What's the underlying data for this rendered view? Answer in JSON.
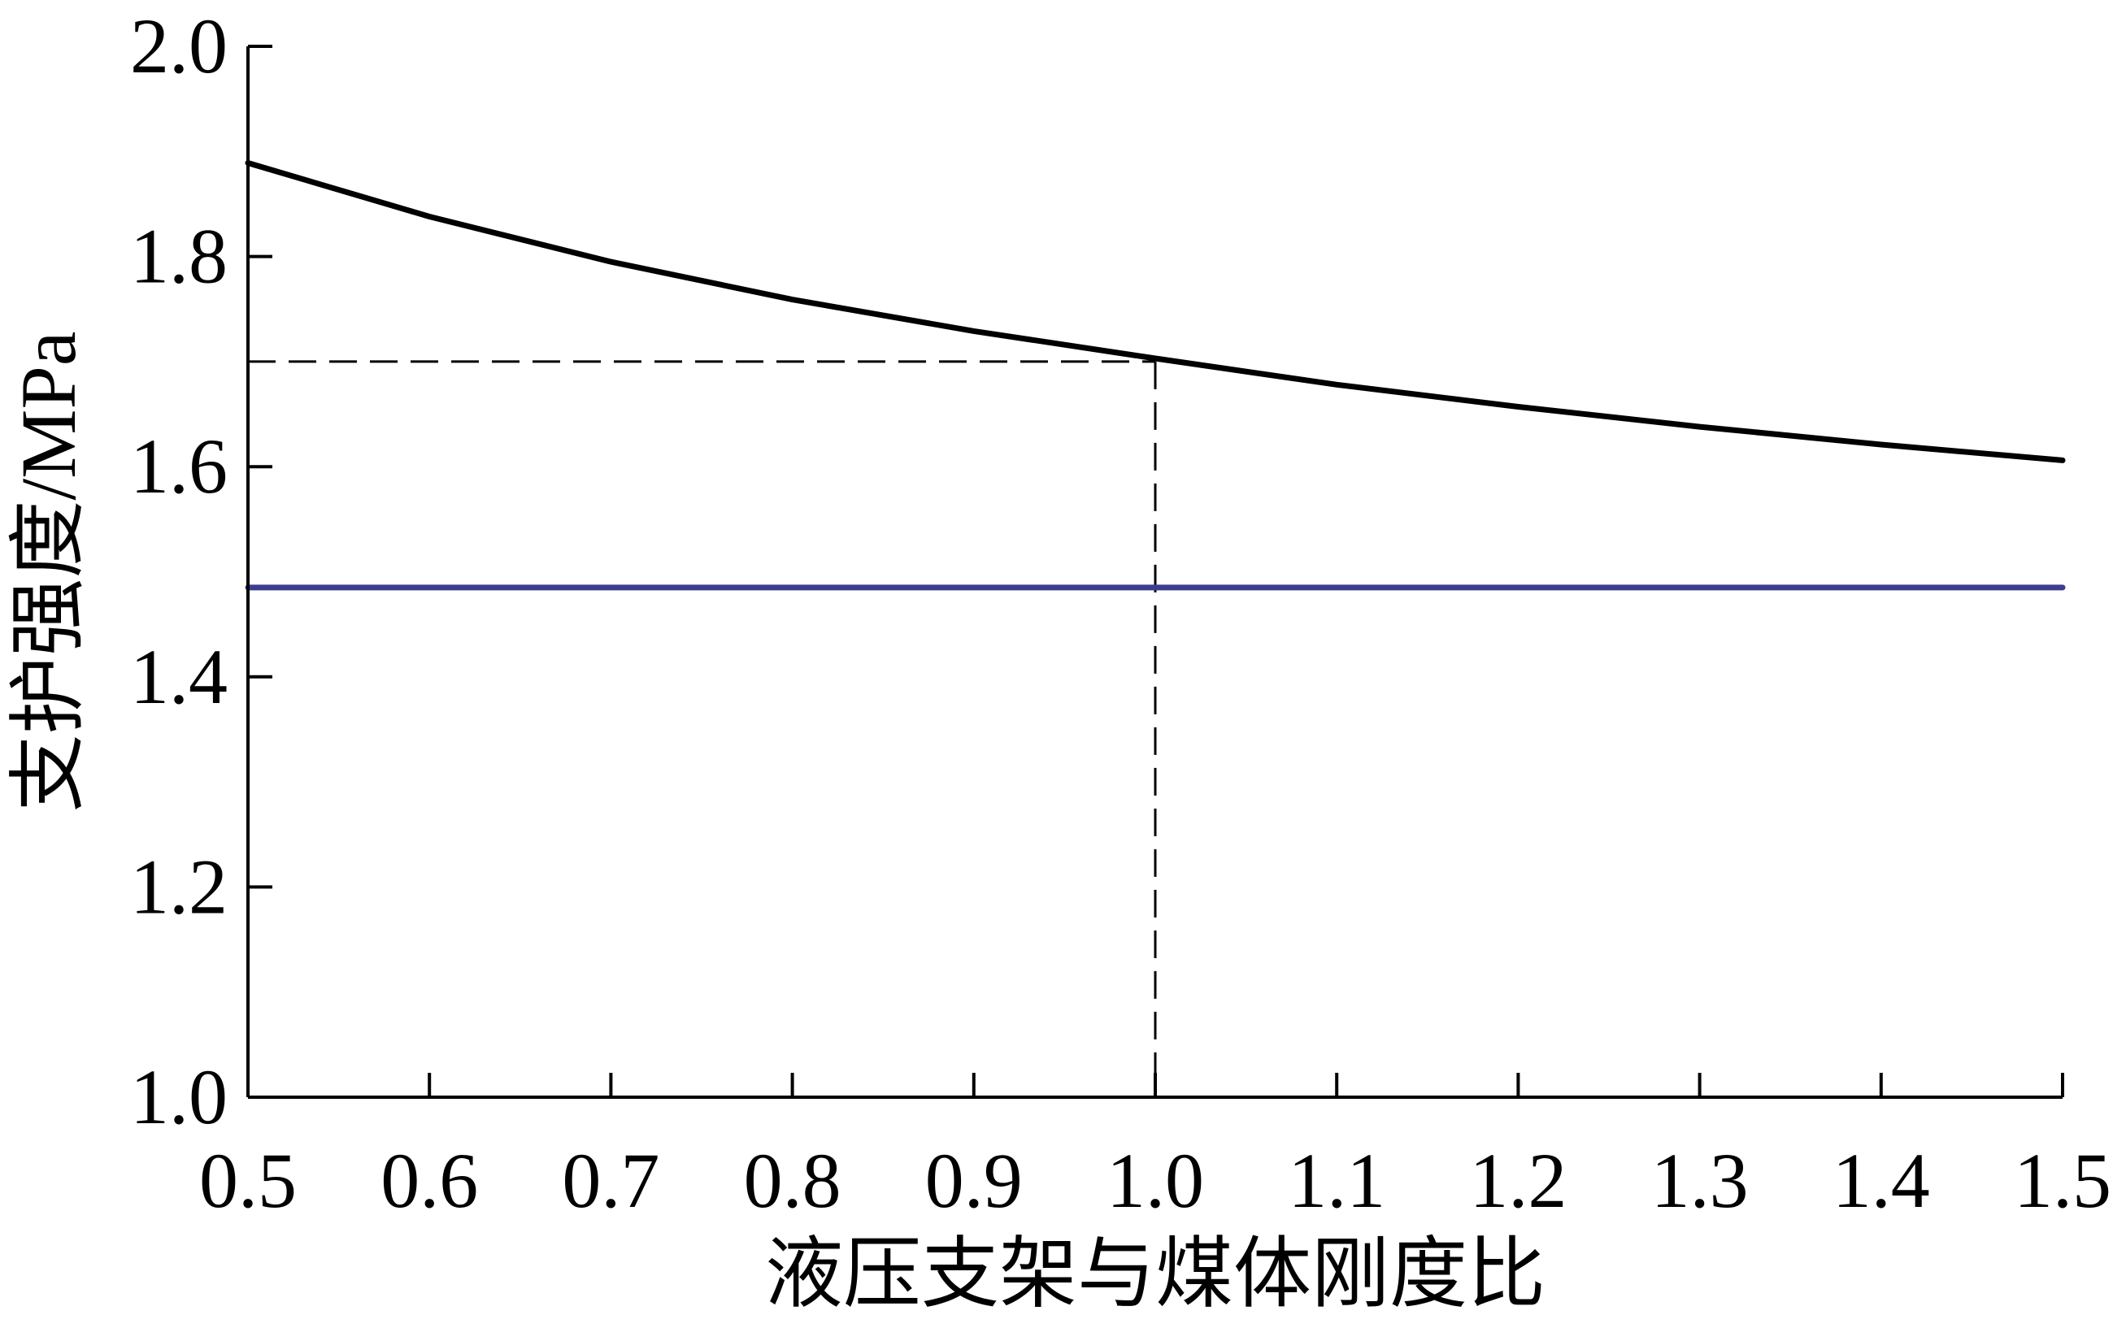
{
  "chart_data": {
    "type": "line",
    "xlabel": "液压支架与煤体刚度比",
    "ylabel": "支护强度/MPa",
    "xlim": [
      0.5,
      1.5
    ],
    "ylim": [
      1.0,
      2.0
    ],
    "x_ticks": [
      "0.5",
      "0.6",
      "0.7",
      "0.8",
      "0.9",
      "1.0",
      "1.1",
      "1.2",
      "1.3",
      "1.4",
      "1.5"
    ],
    "y_ticks": [
      "1.0",
      "1.2",
      "1.4",
      "1.6",
      "1.8",
      "2.0"
    ],
    "grid": false,
    "series": [
      {
        "color": "#000000",
        "x": [
          0.5,
          0.6,
          0.7,
          0.8,
          0.9,
          1.0,
          1.1,
          1.2,
          1.3,
          1.4,
          1.5
        ],
        "y": [
          1.889,
          1.838,
          1.795,
          1.759,
          1.729,
          1.703,
          1.678,
          1.657,
          1.638,
          1.621,
          1.606
        ]
      },
      {
        "color": "#3d3d8f",
        "x": [
          0.5,
          1.5
        ],
        "y": [
          1.485,
          1.485
        ]
      }
    ],
    "reference_lines": {
      "style": "dashed",
      "color": "#000000",
      "point": {
        "x": 1.0,
        "y": 1.7
      }
    }
  }
}
